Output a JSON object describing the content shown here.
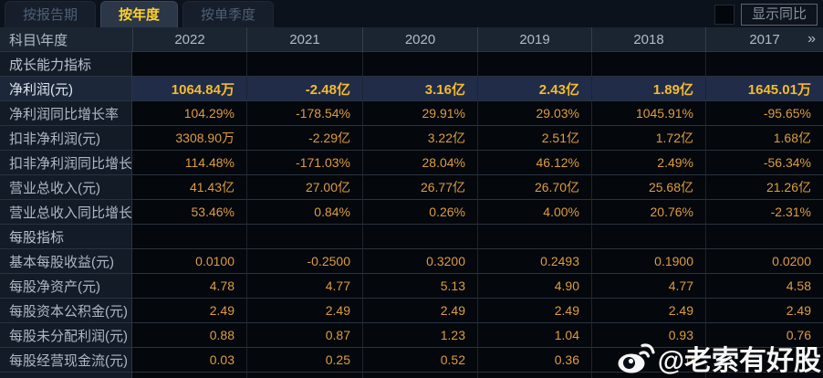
{
  "tabs": [
    {
      "label": "按报告期",
      "active": false
    },
    {
      "label": "按年度",
      "active": true
    },
    {
      "label": "按单季度",
      "active": false
    }
  ],
  "controls": {
    "show_yoy_label": "显示同比",
    "checkbox_checked": false
  },
  "table": {
    "corner_label": "科目\\年度",
    "years": [
      "2022",
      "2021",
      "2020",
      "2019",
      "2018",
      "2017"
    ],
    "more_icon": "»",
    "rows": [
      {
        "type": "section",
        "label": "成长能力指标"
      },
      {
        "type": "data",
        "label": "净利润(元)",
        "highlight": true,
        "values": [
          "1064.84万",
          "-2.48亿",
          "3.16亿",
          "2.43亿",
          "1.89亿",
          "1645.01万"
        ]
      },
      {
        "type": "data",
        "label": "净利润同比增长率",
        "values": [
          "104.29%",
          "-178.54%",
          "29.91%",
          "29.03%",
          "1045.91%",
          "-95.65%"
        ]
      },
      {
        "type": "data",
        "label": "扣非净利润(元)",
        "values": [
          "3308.90万",
          "-2.29亿",
          "3.22亿",
          "2.51亿",
          "1.72亿",
          "1.68亿"
        ]
      },
      {
        "type": "data",
        "label": "扣非净利润同比增长率",
        "values": [
          "114.48%",
          "-171.03%",
          "28.04%",
          "46.12%",
          "2.49%",
          "-56.34%"
        ]
      },
      {
        "type": "data",
        "label": "营业总收入(元)",
        "values": [
          "41.43亿",
          "27.00亿",
          "26.77亿",
          "26.70亿",
          "25.68亿",
          "21.26亿"
        ]
      },
      {
        "type": "data",
        "label": "营业总收入同比增长率",
        "values": [
          "53.46%",
          "0.84%",
          "0.26%",
          "4.00%",
          "20.76%",
          "-2.31%"
        ]
      },
      {
        "type": "section",
        "label": "每股指标"
      },
      {
        "type": "data",
        "label": "基本每股收益(元)",
        "values": [
          "0.0100",
          "-0.2500",
          "0.3200",
          "0.2493",
          "0.1900",
          "0.0200"
        ]
      },
      {
        "type": "data",
        "label": "每股净资产(元)",
        "values": [
          "4.78",
          "4.77",
          "5.13",
          "4.90",
          "4.77",
          "4.58"
        ]
      },
      {
        "type": "data",
        "label": "每股资本公积金(元)",
        "values": [
          "2.49",
          "2.49",
          "2.49",
          "2.49",
          "2.49",
          "2.49"
        ]
      },
      {
        "type": "data",
        "label": "每股未分配利润(元)",
        "values": [
          "0.88",
          "0.87",
          "1.23",
          "1.04",
          "0.93",
          "0.76"
        ]
      },
      {
        "type": "data",
        "label": "每股经营现金流(元)",
        "values": [
          "0.03",
          "0.25",
          "0.52",
          "0.36",
          "0",
          ""
        ]
      }
    ]
  },
  "watermark": {
    "handle": "@老索有好股",
    "icon": "weibo-icon"
  },
  "colors": {
    "accent_gold": "#ffd02e",
    "value_orange": "#dd9c42",
    "highlight_row_bg": "#202c48",
    "header_bg": "#1b2532",
    "label_cell_bg": "#131b27",
    "value_cell_bg": "#04070b"
  }
}
